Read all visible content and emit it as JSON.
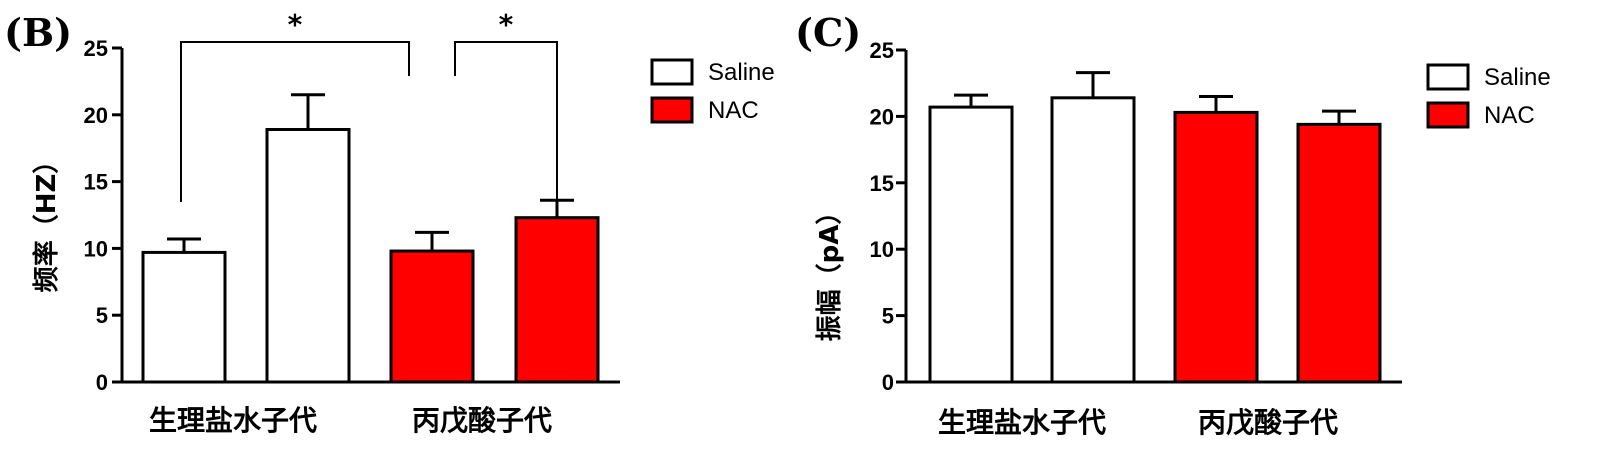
{
  "colors": {
    "saline": "#ffffff",
    "nac": "#ff0000",
    "stroke": "#000000"
  },
  "chart_data": [
    {
      "type": "bar",
      "panel": "(B)",
      "ylabel": "频率（HZ）",
      "categories": [
        "生理盐水子代",
        "丙戊酸子代"
      ],
      "ylim": [
        0,
        25
      ],
      "yticks": [
        "0",
        "5",
        "10",
        "15",
        "20",
        "25"
      ],
      "legend": {
        "placement": "top-right",
        "entries": [
          "Saline",
          "NAC"
        ]
      },
      "series": [
        {
          "name": "Saline",
          "values": [
            9.7,
            18.9
          ],
          "errors": [
            1.0,
            2.6
          ]
        },
        {
          "name": "NAC",
          "values": [
            9.8,
            12.3
          ],
          "errors": [
            1.4,
            1.3
          ]
        }
      ],
      "significance": [
        {
          "label": "*",
          "between": "Saline 生理盐水子代 vs Saline 丙戊酸子代"
        },
        {
          "label": "*",
          "between": "Saline 丙戊酸子代 vs NAC 丙戊酸子代"
        }
      ]
    },
    {
      "type": "bar",
      "panel": "(C)",
      "ylabel": "振幅（pA）",
      "categories": [
        "生理盐水子代",
        "丙戊酸子代"
      ],
      "ylim": [
        0,
        25
      ],
      "yticks": [
        "0",
        "5",
        "10",
        "15",
        "20",
        "25"
      ],
      "legend": {
        "placement": "top-right",
        "entries": [
          "Saline",
          "NAC"
        ]
      },
      "series": [
        {
          "name": "Saline",
          "values": [
            20.7,
            21.4
          ],
          "errors": [
            0.9,
            1.9
          ]
        },
        {
          "name": "NAC",
          "values": [
            20.3,
            19.4
          ],
          "errors": [
            1.2,
            1.0
          ]
        }
      ],
      "significance": []
    }
  ]
}
